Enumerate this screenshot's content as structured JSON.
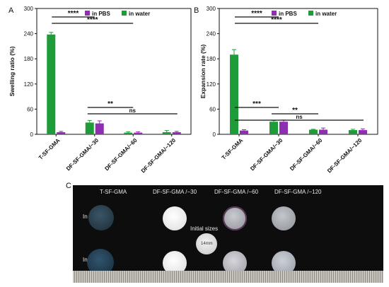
{
  "panels": [
    {
      "letter": "A",
      "ylabel": "Swelling ratio (%)",
      "ylim": [
        0,
        300
      ],
      "yticks": [
        "0",
        "60",
        "120",
        "180",
        "240",
        "300"
      ],
      "legend": [
        "in PBS",
        "in water"
      ],
      "brackets": [
        {
          "label": "****",
          "from": 0,
          "to": 1,
          "level": 1
        },
        {
          "label": "****",
          "from": 0,
          "to": 2,
          "level": 2
        },
        {
          "label": "**",
          "from": 1,
          "to": 2,
          "level": 3
        },
        {
          "label": "ns",
          "from": 1,
          "to": 3,
          "level": 4
        }
      ]
    },
    {
      "letter": "B",
      "ylabel": "Expansion rate (%)",
      "ylim": [
        0,
        300
      ],
      "yticks": [
        "0",
        "60",
        "120",
        "180",
        "240",
        "300"
      ],
      "legend": [
        "in PBS",
        "in water"
      ],
      "brackets": [
        {
          "label": "****",
          "from": 0,
          "to": 1,
          "level": 1
        },
        {
          "label": "****",
          "from": 0,
          "to": 2,
          "level": 2
        },
        {
          "label": "***",
          "from": 0,
          "to": 1,
          "level": 3
        },
        {
          "label": "**",
          "from": 1,
          "to": 2,
          "level": 4
        },
        {
          "label": "ns",
          "from": 0,
          "to": 3,
          "level": 5
        }
      ]
    }
  ],
  "chart_data": [
    {
      "type": "bar",
      "ylabel": "Swelling ratio (%)",
      "ylim": [
        0,
        300
      ],
      "categories": [
        "T-SF-GMA",
        "DF-SF-GMA/−30",
        "DF-SF-GMA/−60",
        "DF-SF-GMA/−120"
      ],
      "series": [
        {
          "name": "in water",
          "values": [
            238,
            28,
            4,
            5
          ],
          "errors": [
            5,
            5,
            2,
            4
          ]
        },
        {
          "name": "in PBS",
          "values": [
            5,
            26,
            4,
            5
          ],
          "errors": [
            2,
            6,
            2,
            2
          ]
        }
      ]
    },
    {
      "type": "bar",
      "ylabel": "Expansion rate (%)",
      "ylim": [
        0,
        300
      ],
      "categories": [
        "T-SF-GMA",
        "DF-SF-GMA/−30",
        "DF-SF-GMA/−60",
        "DF-SF-GMA/−120"
      ],
      "series": [
        {
          "name": "in water",
          "values": [
            190,
            30,
            11,
            10
          ],
          "errors": [
            12,
            3,
            1,
            2
          ]
        },
        {
          "name": "in PBS",
          "values": [
            9,
            30,
            11,
            10
          ],
          "errors": [
            2,
            4,
            4,
            3
          ]
        }
      ]
    }
  ],
  "colors": {
    "water": "#1f9c3a",
    "pbs": "#8e2fb2"
  },
  "photo": {
    "letter": "C",
    "columns": [
      "T-SF-GMA",
      "DF-SF-GMA /−30",
      "DF-SF-GMA /−60",
      "DF-SF-GMA /−120"
    ],
    "rows": [
      "In PBS",
      "In water"
    ],
    "initial_label": "Initial sizes",
    "scale_label": "14mm"
  }
}
